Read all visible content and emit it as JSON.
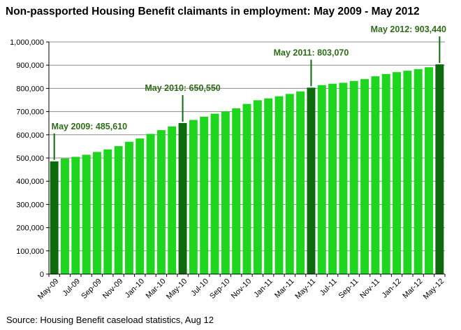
{
  "chart_data": {
    "type": "bar",
    "title": "Non-passported Housing Benefit claimants in employment: May 2009 - May 2012",
    "source": "Source: Housing Benefit caseload statistics, Aug 12",
    "xlabel": "",
    "ylabel": "",
    "ylim": [
      0,
      1000000
    ],
    "yticks": [
      0,
      100000,
      200000,
      300000,
      400000,
      500000,
      600000,
      700000,
      800000,
      900000,
      1000000
    ],
    "ytick_labels": [
      "0",
      "100,000",
      "200,000",
      "300,000",
      "400,000",
      "500,000",
      "600,000",
      "700,000",
      "800,000",
      "900,000",
      "1,000,000"
    ],
    "grid": true,
    "categories": [
      "May-09",
      "Jun-09",
      "Jul-09",
      "Aug-09",
      "Sep-09",
      "Oct-09",
      "Nov-09",
      "Dec-09",
      "Jan-10",
      "Feb-10",
      "Mar-10",
      "Apr-10",
      "May-10",
      "Jun-10",
      "Jul-10",
      "Aug-10",
      "Sep-10",
      "Oct-10",
      "Nov-10",
      "Dec-10",
      "Jan-11",
      "Feb-11",
      "Mar-11",
      "Apr-11",
      "May-11",
      "Jun-11",
      "Jul-11",
      "Aug-11",
      "Sep-11",
      "Oct-11",
      "Nov-11",
      "Dec-11",
      "Jan-12",
      "Feb-12",
      "Mar-12",
      "Apr-12",
      "May-12"
    ],
    "xtick_labels": [
      "May-09",
      "Jul-09",
      "Sep-09",
      "Nov-09",
      "Jan-10",
      "Mar-10",
      "May-10",
      "Jul-10",
      "Sep-10",
      "Nov-10",
      "Jan-11",
      "Mar-11",
      "May-11",
      "Jul-11",
      "Sep-11",
      "Nov-11",
      "Jan-12",
      "Mar-12",
      "May-12"
    ],
    "values": [
      485610,
      498000,
      505000,
      514000,
      526000,
      537000,
      551000,
      570000,
      584000,
      604000,
      620000,
      636000,
      650550,
      664000,
      678000,
      691000,
      701000,
      714000,
      733000,
      749000,
      757000,
      766000,
      776000,
      787000,
      803070,
      814000,
      820000,
      824000,
      832000,
      840000,
      852000,
      862000,
      870000,
      876000,
      883000,
      891000,
      903440
    ],
    "highlight_categories": [
      "May-09",
      "May-10",
      "May-11",
      "May-12"
    ],
    "annotations": [
      {
        "category": "May-09",
        "label": "May 2009: 485,610"
      },
      {
        "category": "May-10",
        "label": "May 2010: 650,550"
      },
      {
        "category": "May-11",
        "label": "May 2011: 803,070"
      },
      {
        "category": "May-12",
        "label": "May 2012: 903,440"
      }
    ],
    "colors": {
      "bar": "#1ed61e",
      "bar_highlight": "#0d6b0d",
      "annotation_text": "#2e6b1a",
      "grid": "#8c8c8c",
      "axis": "#000000"
    }
  }
}
